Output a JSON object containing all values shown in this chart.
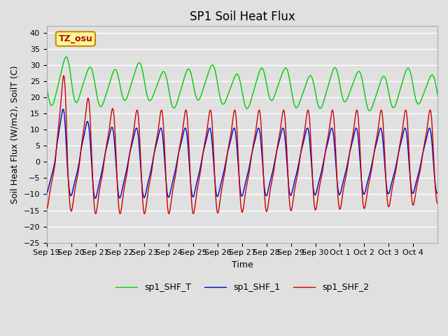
{
  "title": "SP1 Soil Heat Flux",
  "xlabel": "Time",
  "ylabel": "Soil Heat Flux (W/m2), SoilT (C)",
  "ylim": [
    -25,
    42
  ],
  "yticks": [
    -25,
    -20,
    -15,
    -10,
    -5,
    0,
    5,
    10,
    15,
    20,
    25,
    30,
    35,
    40
  ],
  "xtick_labels": [
    "Sep 19",
    "Sep 20",
    "Sep 21",
    "Sep 22",
    "Sep 23",
    "Sep 24",
    "Sep 25",
    "Sep 26",
    "Sep 27",
    "Sep 28",
    "Sep 29",
    "Sep 30",
    "Oct 1",
    "Oct 2",
    "Oct 3",
    "Oct 4"
  ],
  "legend_labels": [
    "sp1_SHF_2",
    "sp1_SHF_1",
    "sp1_SHF_T"
  ],
  "line_colors": [
    "#cc0000",
    "#0000cc",
    "#00cc00"
  ],
  "annotation_text": "TZ_osu",
  "annotation_box_color": "#ffff99",
  "annotation_box_edge": "#cc8800",
  "plot_bg_color": "#e0e0e0",
  "grid_color": "#ffffff",
  "title_fontsize": 12,
  "axis_fontsize": 9,
  "tick_fontsize": 8,
  "legend_fontsize": 9
}
